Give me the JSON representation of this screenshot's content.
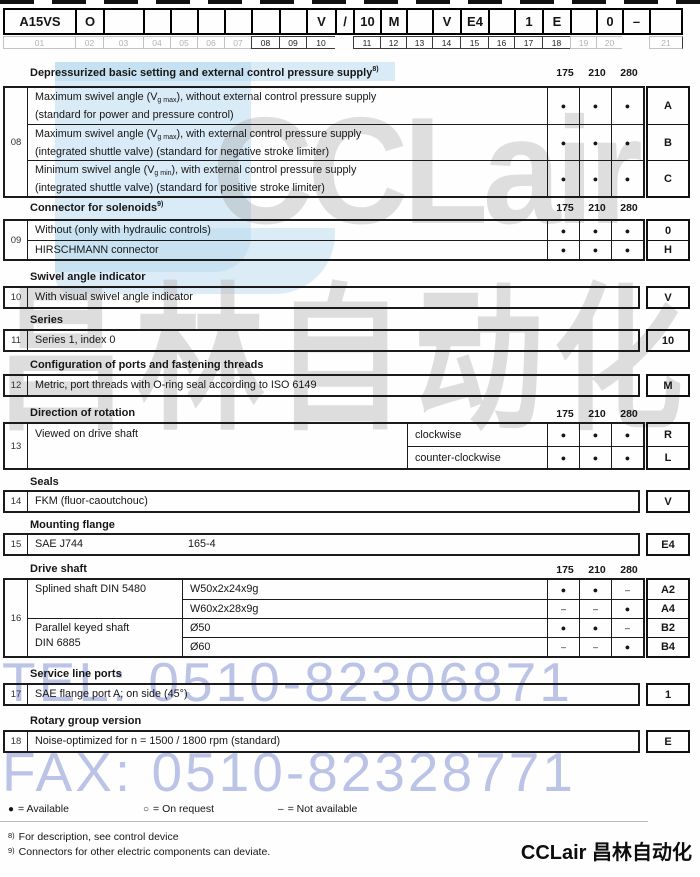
{
  "code": {
    "cells": [
      {
        "v": "A15VS",
        "n": "01",
        "g": true
      },
      {
        "v": "O",
        "n": "02",
        "g": true
      },
      {
        "v": "",
        "n": "03",
        "g": true
      },
      {
        "v": "",
        "n": "04",
        "g": true
      },
      {
        "v": "",
        "n": "05",
        "g": true
      },
      {
        "v": "",
        "n": "06",
        "g": true
      },
      {
        "v": "",
        "n": "07",
        "g": true
      },
      {
        "v": "",
        "n": "08",
        "g": false
      },
      {
        "v": "",
        "n": "09",
        "g": false
      },
      {
        "v": "V",
        "n": "10",
        "g": false
      },
      {
        "v": "/",
        "n": "",
        "g": null
      },
      {
        "v": "10",
        "n": "11",
        "g": false
      },
      {
        "v": "M",
        "n": "12",
        "g": false
      },
      {
        "v": "",
        "n": "13",
        "g": false
      },
      {
        "v": "V",
        "n": "14",
        "g": false
      },
      {
        "v": "E4",
        "n": "15",
        "g": false
      },
      {
        "v": "",
        "n": "16",
        "g": false
      },
      {
        "v": "1",
        "n": "17",
        "g": false
      },
      {
        "v": "E",
        "n": "18",
        "g": false
      },
      {
        "v": "",
        "n": "19",
        "g": true
      },
      {
        "v": "0",
        "n": "20",
        "g": true
      },
      {
        "v": "–",
        "n": "",
        "g": null
      },
      {
        "v": "",
        "n": "21",
        "g": true
      }
    ]
  },
  "avail_cols": [
    "175",
    "210",
    "280"
  ],
  "sections": {
    "s08": {
      "num": "08",
      "title": "Depressurized basic setting and external control pressure supply",
      "sup": "8)",
      "rows": [
        {
          "pre": "Maximum swivel angle (V",
          "sub": "g max",
          "post": "), without external control pressure supply",
          "line2": "(standard for power and pressure control)",
          "avail": [
            "●",
            "●",
            "●"
          ],
          "code": "A"
        },
        {
          "pre": "Maximum swivel angle (V",
          "sub": "g max",
          "post": "), with external control pressure supply",
          "line2": "(integrated shuttle valve) (standard for negative stroke limiter)",
          "avail": [
            "●",
            "●",
            "●"
          ],
          "code": "B"
        },
        {
          "pre": "Minimum swivel angle (V",
          "sub": "g min",
          "post": "), with external control pressure supply",
          "line2": "(integrated shuttle valve) (standard for positive stroke limiter)",
          "avail": [
            "●",
            "●",
            "●"
          ],
          "code": "C"
        }
      ]
    },
    "s09": {
      "num": "09",
      "title": "Connector for solenoids",
      "sup": "9)",
      "rows": [
        {
          "label": "Without (only with hydraulic controls)",
          "avail": [
            "●",
            "●",
            "●"
          ],
          "code": "0"
        },
        {
          "label": "HIRSCHMANN connector",
          "avail": [
            "●",
            "●",
            "●"
          ],
          "code": "H"
        }
      ]
    },
    "s10": {
      "num": "10",
      "title": "Swivel angle indicator",
      "label": "With visual swivel angle indicator",
      "code": "V"
    },
    "s11": {
      "num": "11",
      "title": "Series",
      "label": "Series 1, index 0",
      "code": "10"
    },
    "s12": {
      "num": "12",
      "title": "Configuration of ports and fastening threads",
      "label": "Metric, port threads with O-ring seal according to ISO 6149",
      "code": "M"
    },
    "s13": {
      "num": "13",
      "title": "Direction of rotation",
      "label": "Viewed on drive shaft",
      "rows": [
        {
          "sub": "clockwise",
          "avail": [
            "●",
            "●",
            "●"
          ],
          "code": "R"
        },
        {
          "sub": "counter-clockwise",
          "avail": [
            "●",
            "●",
            "●"
          ],
          "code": "L"
        }
      ]
    },
    "s14": {
      "num": "14",
      "title": "Seals",
      "label": "FKM (fluor-caoutchouc)",
      "code": "V"
    },
    "s15": {
      "num": "15",
      "title": "Mounting flange",
      "label": "SAE J744",
      "label2": "165-4",
      "code": "E4"
    },
    "s16": {
      "num": "16",
      "title": "Drive shaft",
      "groups": [
        {
          "name": "Splined shaft DIN 5480",
          "name2": "",
          "rows": [
            {
              "spec": "W50x2x24x9g",
              "avail": [
                "●",
                "●",
                "–"
              ],
              "code": "A2"
            },
            {
              "spec": "W60x2x28x9g",
              "avail": [
                "–",
                "–",
                "●"
              ],
              "code": "A4"
            }
          ]
        },
        {
          "name": "Parallel keyed shaft",
          "name2": "DIN 6885",
          "rows": [
            {
              "spec": "Ø50",
              "avail": [
                "●",
                "●",
                "–"
              ],
              "code": "B2"
            },
            {
              "spec": "Ø60",
              "avail": [
                "–",
                "–",
                "●"
              ],
              "code": "B4"
            }
          ]
        }
      ]
    },
    "s17": {
      "num": "17",
      "title": "Service line ports",
      "label": "SAE flange port A; on side (45°)",
      "code": "1"
    },
    "s18": {
      "num": "18",
      "title": "Rotary group version",
      "label": "Noise-optimized for n = 1500 / 1800 rpm (standard)",
      "code": "E"
    }
  },
  "legend": [
    {
      "sym": "●",
      "text": "= Available"
    },
    {
      "sym": "○",
      "text": "= On request"
    },
    {
      "sym": "–",
      "text": "= Not available"
    }
  ],
  "footnotes": [
    {
      "num": "8)",
      "text": "For description, see control device"
    },
    {
      "num": "9)",
      "text": "Connectors for other electric components can deviate."
    }
  ],
  "watermark": {
    "logo_text": "CCLair",
    "cn_text": "昌林自动化",
    "tel": "TEL: 0510-82306871",
    "fax": "FAX: 0510-82328771",
    "brand": "CCLair 昌林自动化",
    "blue": "#b4d8ee",
    "lavender": "#a9b3e0",
    "gray": "#bdbdbd",
    "logo_gray": "#8f8f8f"
  }
}
